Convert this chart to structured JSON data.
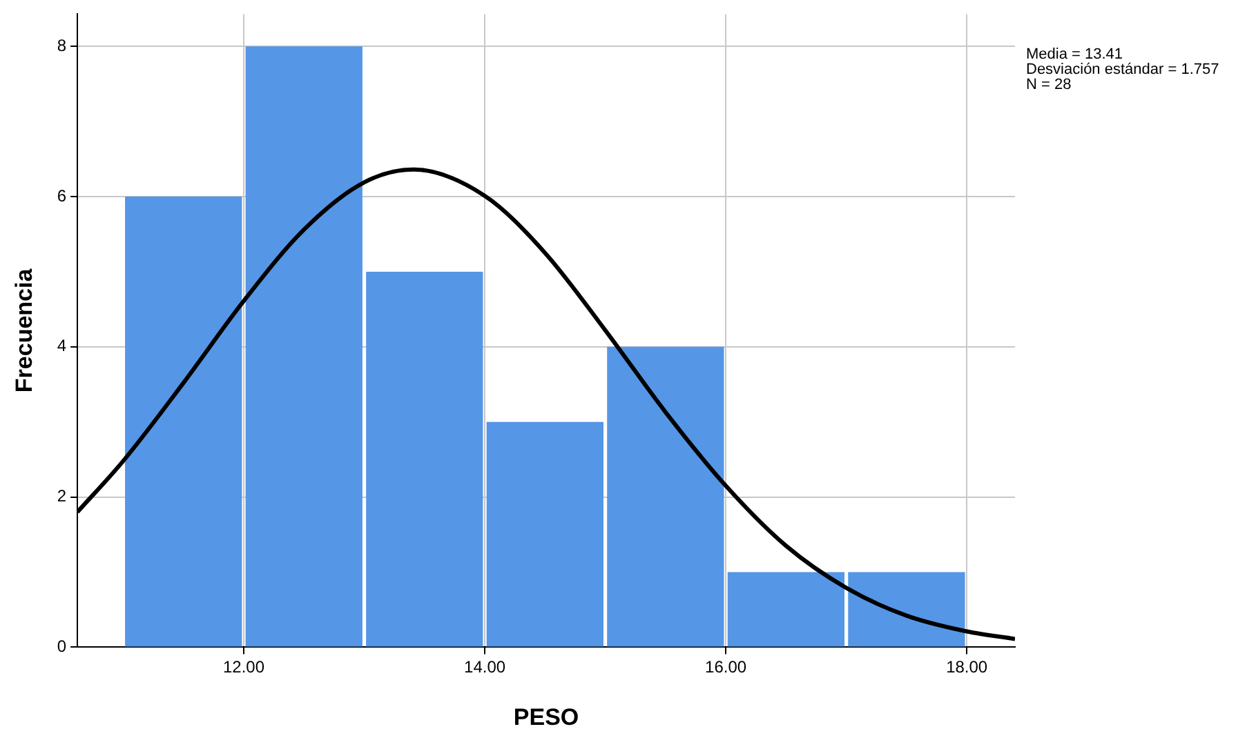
{
  "chart_data": {
    "type": "histogram",
    "xlabel": "PESO",
    "ylabel": "Frecuencia",
    "annotations": [
      "Media = 13.41",
      "Desviación estándar = 1.757",
      "N = 28"
    ],
    "series": [
      {
        "color": "#5596e6",
        "bins": [
          11,
          12,
          13,
          14,
          15,
          16,
          17,
          18
        ],
        "values": [
          6,
          8,
          5,
          3,
          4,
          1,
          1
        ]
      },
      {
        "type": "line",
        "color": "#000000",
        "x": [
          10.62,
          11,
          11.5,
          12,
          12.5,
          13,
          13.41,
          14,
          14.5,
          15,
          15.5,
          16,
          16.5,
          17,
          17.5,
          18,
          18.4
        ],
        "values": [
          1.8,
          2.48,
          3.52,
          4.61,
          5.56,
          6.19,
          6.36,
          6.01,
          5.25,
          4.22,
          3.13,
          2.15,
          1.35,
          0.79,
          0.42,
          0.21,
          0.11
        ]
      }
    ],
    "xlim": [
      10.62,
      18.4
    ],
    "xticks": [
      {
        "value": 12,
        "label": "12.00"
      },
      {
        "value": 14,
        "label": "14.00"
      },
      {
        "value": 16,
        "label": "16.00"
      },
      {
        "value": 18,
        "label": "18.00"
      }
    ],
    "ylim": [
      0,
      8.43
    ],
    "yticks": [
      0,
      2,
      4,
      6,
      8
    ],
    "grid": true,
    "legend": false,
    "marker": "none",
    "line_style": "solid"
  }
}
